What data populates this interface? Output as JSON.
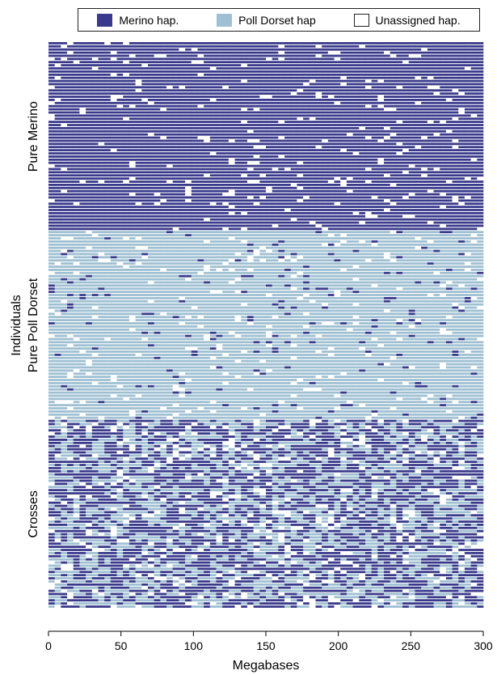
{
  "chart_data": {
    "type": "heatmap",
    "title": "",
    "xlabel": "Megabases",
    "ylabel": "Individuals",
    "xlim": [
      0,
      300
    ],
    "x_ticks": [
      0,
      50,
      100,
      150,
      200,
      250,
      300
    ],
    "legend": {
      "placement": "top",
      "entries": [
        {
          "label": "Merino hap.",
          "color": "#3a3a8c"
        },
        {
          "label": "Poll Dorset hap",
          "color": "#9fc0d2"
        },
        {
          "label": "Unassigned hap.",
          "color": "#ffffff"
        }
      ]
    },
    "groups": [
      {
        "label": "Pure Merino",
        "rows": 60,
        "composition": {
          "merino": 0.93,
          "poll_dorset": 0.0,
          "unassigned": 0.07
        }
      },
      {
        "label": "Pure Poll Dorset",
        "rows": 60,
        "composition": {
          "merino": 0.04,
          "poll_dorset": 0.9,
          "unassigned": 0.06
        }
      },
      {
        "label": "Crosses",
        "rows": 60,
        "composition": {
          "merino": 0.5,
          "poll_dorset": 0.4,
          "unassigned": 0.1
        }
      }
    ]
  }
}
